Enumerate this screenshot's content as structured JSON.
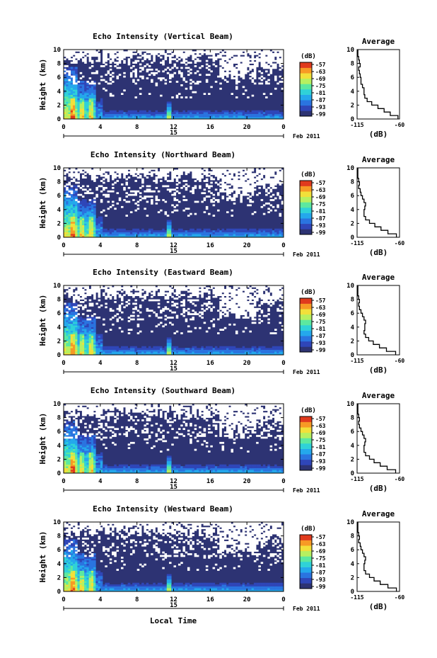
{
  "figure": {
    "bottom_xlabel": "Local Time"
  },
  "chart_data": [
    {
      "type": "heatmap",
      "title": "Echo Intensity (Vertical Beam)",
      "ylabel": "Height (km)",
      "ylim": [
        0,
        10
      ],
      "yticks": [
        "0",
        "2",
        "4",
        "6",
        "8",
        "10"
      ],
      "xlim": [
        0,
        24
      ],
      "xticks": [
        "0",
        "4",
        "8",
        "12",
        "16",
        "20",
        "0"
      ],
      "date_day": "15",
      "date_month": "Feb 2011",
      "colorbar": {
        "unit": "(dB)",
        "ticks": [
          "-57",
          "-63",
          "-69",
          "-75",
          "-81",
          "-87",
          "-93",
          "-99"
        ]
      },
      "profile": {
        "title": "Average",
        "xlabel": "(dB)",
        "xticks": [
          "-115",
          "-60"
        ],
        "xlim": [
          -115,
          -60
        ],
        "ylim": [
          0,
          10
        ],
        "yticks": [
          "0",
          "2",
          "4",
          "6",
          "8",
          "10"
        ],
        "heights": [
          0,
          0.5,
          1,
          1.5,
          2,
          2.5,
          3,
          3.5,
          4,
          4.5,
          5,
          5.5,
          6,
          6.5,
          7,
          7.5,
          8,
          8.5,
          9,
          9.5
        ],
        "values": [
          -62,
          -72,
          -80,
          -88,
          -96,
          -102,
          -105,
          -106,
          -106,
          -108,
          -110,
          -110,
          -111,
          -112,
          -113,
          -111,
          -112,
          -113,
          -114,
          -114
        ]
      }
    },
    {
      "type": "heatmap",
      "title": "Echo Intensity (Northward Beam)",
      "ylabel": "Height (km)",
      "ylim": [
        0,
        10
      ],
      "yticks": [
        "0",
        "2",
        "4",
        "6",
        "8",
        "10"
      ],
      "xlim": [
        0,
        24
      ],
      "xticks": [
        "0",
        "4",
        "8",
        "12",
        "16",
        "20",
        "0"
      ],
      "date_day": "15",
      "date_month": "Feb 2011",
      "colorbar": {
        "unit": "(dB)",
        "ticks": [
          "-57",
          "-63",
          "-69",
          "-75",
          "-81",
          "-87",
          "-93",
          "-99"
        ]
      },
      "profile": {
        "title": "Average",
        "xlabel": "(dB)",
        "xticks": [
          "-115",
          "-60"
        ],
        "xlim": [
          -115,
          -60
        ],
        "ylim": [
          0,
          10
        ],
        "yticks": [
          "0",
          "2",
          "4",
          "6",
          "8",
          "10"
        ],
        "heights": [
          0,
          0.5,
          1,
          1.5,
          2,
          2.5,
          3,
          3.5,
          4,
          4.5,
          5,
          5.5,
          6,
          6.5,
          7,
          7.5,
          8,
          8.5,
          9,
          9.5
        ],
        "values": [
          -64,
          -75,
          -84,
          -92,
          -99,
          -104,
          -106,
          -106,
          -105,
          -104,
          -106,
          -108,
          -110,
          -111,
          -113,
          -112,
          -113,
          -114,
          -114,
          -114
        ]
      }
    },
    {
      "type": "heatmap",
      "title": "Echo Intensity (Eastward Beam)",
      "ylabel": "Height (km)",
      "ylim": [
        0,
        10
      ],
      "yticks": [
        "0",
        "2",
        "4",
        "6",
        "8",
        "10"
      ],
      "xlim": [
        0,
        24
      ],
      "xticks": [
        "0",
        "4",
        "8",
        "12",
        "16",
        "20",
        "0"
      ],
      "date_day": "15",
      "date_month": "Feb 2011",
      "colorbar": {
        "unit": "(dB)",
        "ticks": [
          "-57",
          "-63",
          "-69",
          "-75",
          "-81",
          "-87",
          "-93",
          "-99"
        ]
      },
      "profile": {
        "title": "Average",
        "xlabel": "(dB)",
        "xticks": [
          "-115",
          "-60"
        ],
        "xlim": [
          -115,
          -60
        ],
        "ylim": [
          0,
          10
        ],
        "yticks": [
          "0",
          "2",
          "4",
          "6",
          "8",
          "10"
        ],
        "heights": [
          0,
          0.5,
          1,
          1.5,
          2,
          2.5,
          3,
          3.5,
          4,
          4.5,
          5,
          5.5,
          6,
          6.5,
          7,
          7.5,
          8,
          8.5,
          9,
          9.5
        ],
        "values": [
          -65,
          -77,
          -86,
          -94,
          -100,
          -104,
          -106,
          -105,
          -105,
          -104,
          -106,
          -108,
          -110,
          -112,
          -113,
          -112,
          -113,
          -114,
          -114,
          -114
        ]
      }
    },
    {
      "type": "heatmap",
      "title": "Echo Intensity (Southward Beam)",
      "ylabel": "Height (km)",
      "ylim": [
        0,
        10
      ],
      "yticks": [
        "0",
        "2",
        "4",
        "6",
        "8",
        "10"
      ],
      "xlim": [
        0,
        24
      ],
      "xticks": [
        "0",
        "4",
        "8",
        "12",
        "16",
        "20",
        "0"
      ],
      "date_day": "15",
      "date_month": "Feb 2011",
      "colorbar": {
        "unit": "(dB)",
        "ticks": [
          "-57",
          "-63",
          "-69",
          "-75",
          "-81",
          "-87",
          "-93",
          "-99"
        ]
      },
      "profile": {
        "title": "Average",
        "xlabel": "(dB)",
        "xticks": [
          "-115",
          "-60"
        ],
        "xlim": [
          -115,
          -60
        ],
        "ylim": [
          0,
          10
        ],
        "yticks": [
          "0",
          "2",
          "4",
          "6",
          "8",
          "10"
        ],
        "heights": [
          0,
          0.5,
          1,
          1.5,
          2,
          2.5,
          3,
          3.5,
          4,
          4.5,
          5,
          5.5,
          6,
          6.5,
          7,
          7.5,
          8,
          8.5,
          9,
          9.5
        ],
        "values": [
          -65,
          -76,
          -85,
          -93,
          -99,
          -104,
          -106,
          -106,
          -105,
          -104,
          -106,
          -108,
          -110,
          -112,
          -113,
          -112,
          -113,
          -114,
          -114,
          -114
        ]
      }
    },
    {
      "type": "heatmap",
      "title": "Echo Intensity (Westward Beam)",
      "ylabel": "Height (km)",
      "ylim": [
        0,
        10
      ],
      "yticks": [
        "0",
        "2",
        "4",
        "6",
        "8",
        "10"
      ],
      "xlim": [
        0,
        24
      ],
      "xticks": [
        "0",
        "4",
        "8",
        "12",
        "16",
        "20",
        "0"
      ],
      "date_day": "15",
      "date_month": "Feb 2011",
      "colorbar": {
        "unit": "(dB)",
        "ticks": [
          "-57",
          "-63",
          "-69",
          "-75",
          "-81",
          "-87",
          "-93",
          "-99"
        ]
      },
      "profile": {
        "title": "Average",
        "xlabel": "(dB)",
        "xticks": [
          "-115",
          "-60"
        ],
        "xlim": [
          -115,
          -60
        ],
        "ylim": [
          0,
          10
        ],
        "yticks": [
          "0",
          "2",
          "4",
          "6",
          "8",
          "10"
        ],
        "heights": [
          0,
          0.5,
          1,
          1.5,
          2,
          2.5,
          3,
          3.5,
          4,
          4.5,
          5,
          5.5,
          6,
          6.5,
          7,
          7.5,
          8,
          8.5,
          9,
          9.5
        ],
        "values": [
          -64,
          -75,
          -85,
          -93,
          -99,
          -104,
          -106,
          -106,
          -105,
          -104,
          -106,
          -108,
          -110,
          -111,
          -113,
          -112,
          -113,
          -114,
          -114,
          -114
        ]
      }
    }
  ],
  "colors": {
    "background_field": "#2d3373",
    "colormap": [
      "#2d3373",
      "#2f46b8",
      "#2a74e0",
      "#24a8ec",
      "#2fd2d8",
      "#5ce8a0",
      "#b7f060",
      "#f2e03a",
      "#f79a25",
      "#e03a1d"
    ]
  }
}
